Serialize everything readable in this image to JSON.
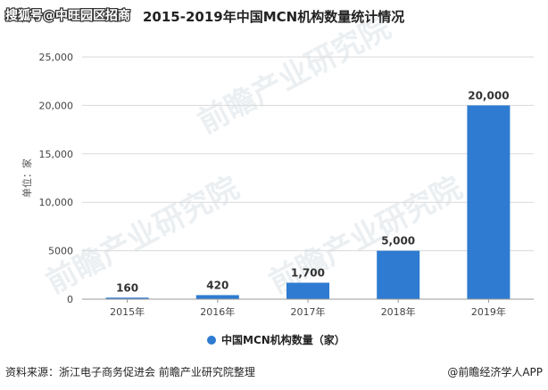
{
  "overlay_caption": "搜狐号@中旺园区招商",
  "footer": {
    "source": "资料来源：浙江电子商务促进会 前瞻产业研究院整理",
    "brand": "@前瞻经济学人APP"
  },
  "colors": {
    "bar": "#2e7bd1",
    "grid": "#d9d9d9",
    "axis": "#999999"
  },
  "chart_data": {
    "type": "bar",
    "title": "2015-2019年中国MCN机构数量统计情况",
    "ylabel": "单位：家",
    "xlabel": "",
    "categories": [
      "2015年",
      "2016年",
      "2017年",
      "2018年",
      "2019年"
    ],
    "series": [
      {
        "name": "中国MCN机构数量（家）",
        "values": [
          160,
          420,
          1700,
          5000,
          20000
        ]
      }
    ],
    "data_labels": [
      "160",
      "420",
      "1,700",
      "5,000",
      "20,000"
    ],
    "ylim": [
      0,
      25000
    ],
    "yticks": [
      0,
      5000,
      10000,
      15000,
      20000,
      25000
    ],
    "ytick_labels": [
      "0",
      "5000",
      "10,000",
      "15,000",
      "20,000",
      "25,000"
    ],
    "grid": true,
    "legend_position": "bottom"
  }
}
